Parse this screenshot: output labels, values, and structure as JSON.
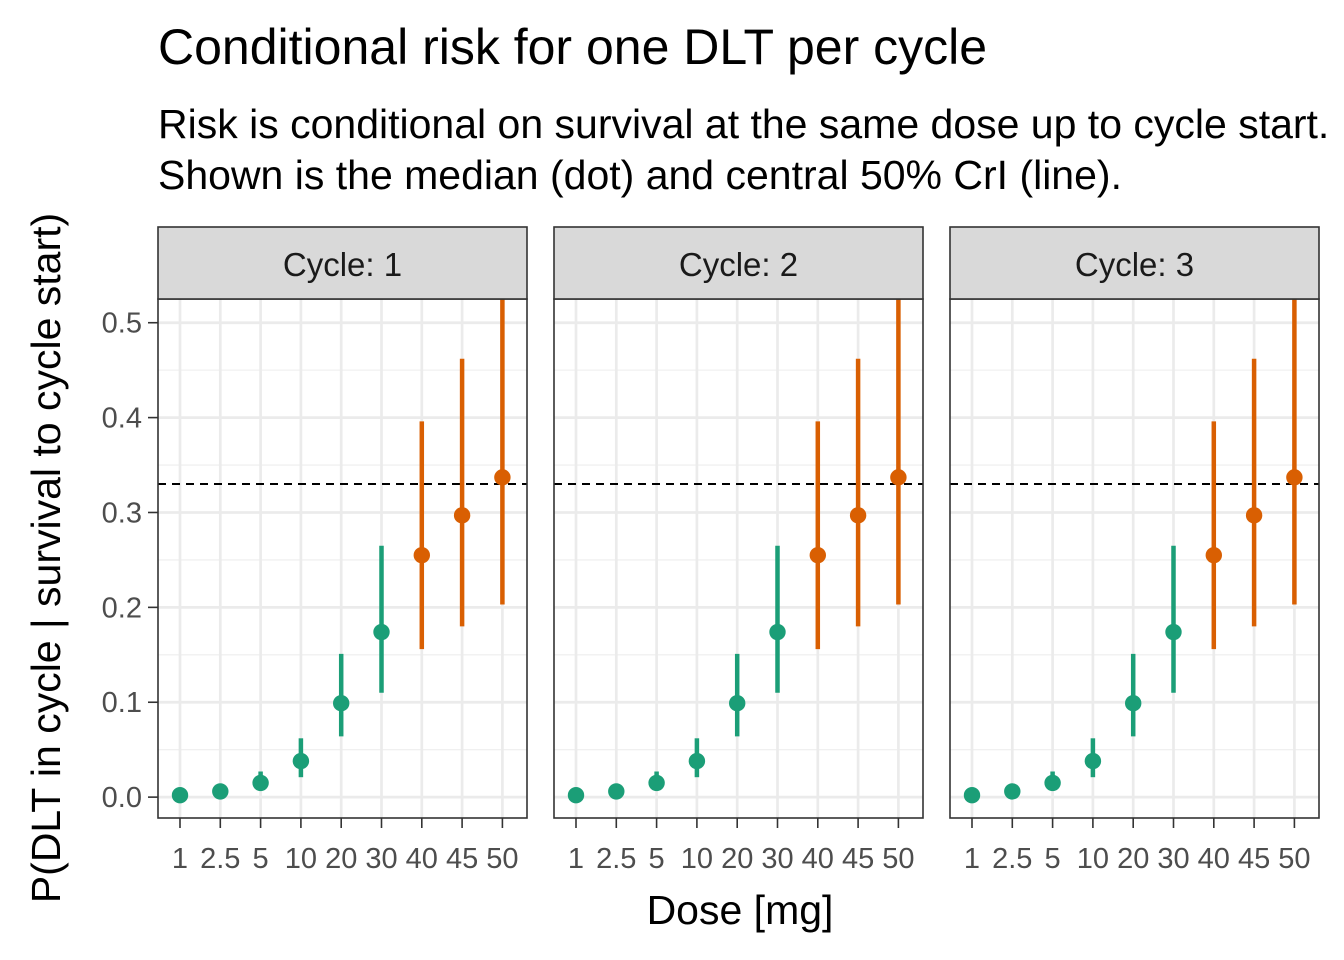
{
  "chart_data": {
    "type": "scatter",
    "title": "Conditional risk for one DLT per cycle",
    "subtitle": [
      "Risk is conditional on survival at the same dose up to cycle start.",
      "Shown is the median (dot) and central 50% CrI (line)."
    ],
    "xlabel": "Dose [mg]",
    "ylabel": "P(DLT in cycle | survival to cycle start)",
    "categories": [
      "1",
      "2.5",
      "5",
      "10",
      "20",
      "30",
      "40",
      "45",
      "50"
    ],
    "yticks": [
      "0.0",
      "0.1",
      "0.2",
      "0.3",
      "0.4",
      "0.5"
    ],
    "ylim": [
      -0.022,
      0.525
    ],
    "reference_line": 0.33,
    "grid": true,
    "colors": {
      "below": "#1b9e77",
      "above": "#d95f02",
      "reference": "#000000",
      "strip_bg": "#d9d9d9"
    },
    "facets": [
      {
        "label": "Cycle: 1",
        "median": [
          0.002,
          0.006,
          0.015,
          0.038,
          0.099,
          0.174,
          0.255,
          0.297,
          0.337
        ],
        "lower": [
          0.0005,
          0.003,
          0.008,
          0.021,
          0.064,
          0.11,
          0.156,
          0.18,
          0.203
        ],
        "upper": [
          0.004,
          0.01,
          0.027,
          0.062,
          0.151,
          0.265,
          0.396,
          0.462,
          0.525
        ],
        "color_group": [
          "below",
          "below",
          "below",
          "below",
          "below",
          "below",
          "above",
          "above",
          "above"
        ]
      },
      {
        "label": "Cycle: 2",
        "median": [
          0.002,
          0.006,
          0.015,
          0.038,
          0.099,
          0.174,
          0.255,
          0.297,
          0.337
        ],
        "lower": [
          0.0005,
          0.003,
          0.008,
          0.021,
          0.064,
          0.11,
          0.156,
          0.18,
          0.203
        ],
        "upper": [
          0.004,
          0.01,
          0.027,
          0.062,
          0.151,
          0.265,
          0.396,
          0.462,
          0.525
        ],
        "color_group": [
          "below",
          "below",
          "below",
          "below",
          "below",
          "below",
          "above",
          "above",
          "above"
        ]
      },
      {
        "label": "Cycle: 3",
        "median": [
          0.002,
          0.006,
          0.015,
          0.038,
          0.099,
          0.174,
          0.255,
          0.297,
          0.337
        ],
        "lower": [
          0.0005,
          0.003,
          0.008,
          0.021,
          0.064,
          0.11,
          0.156,
          0.18,
          0.203
        ],
        "upper": [
          0.004,
          0.01,
          0.027,
          0.062,
          0.151,
          0.265,
          0.396,
          0.462,
          0.525
        ],
        "color_group": [
          "below",
          "below",
          "below",
          "below",
          "below",
          "below",
          "above",
          "above",
          "above"
        ]
      }
    ]
  }
}
